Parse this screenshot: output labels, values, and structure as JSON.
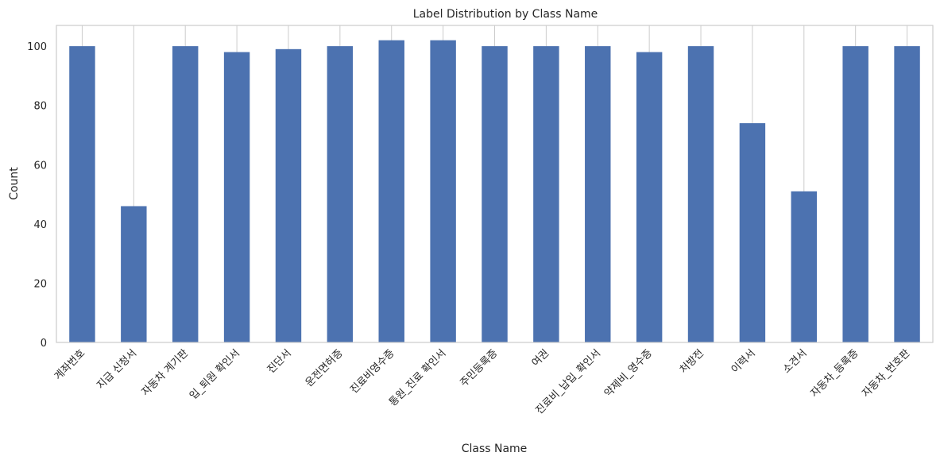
{
  "chart_data": {
    "type": "bar",
    "title": "Label Distribution by Class Name",
    "xlabel": "Class Name",
    "ylabel": "Count",
    "categories": [
      "계좌번호",
      "지급 신청서",
      "자동차 계기판",
      "입_퇴원 확인서",
      "진단서",
      "운전면허증",
      "진료비영수증",
      "통원_진료 확인서",
      "주민등록증",
      "여권",
      "진료비_납입_확인서",
      "약제비_영수증",
      "처방전",
      "이력서",
      "소견서",
      "자동차_등록증",
      "자동차_번호판"
    ],
    "values": [
      100,
      46,
      100,
      98,
      99,
      100,
      102,
      102,
      100,
      100,
      100,
      98,
      100,
      74,
      51,
      100,
      100
    ],
    "ylim": [
      0,
      107
    ],
    "yticks": [
      0,
      20,
      40,
      60,
      80,
      100
    ],
    "grid": "vertical",
    "bar_color": "#4c72b0",
    "legend": "none"
  }
}
